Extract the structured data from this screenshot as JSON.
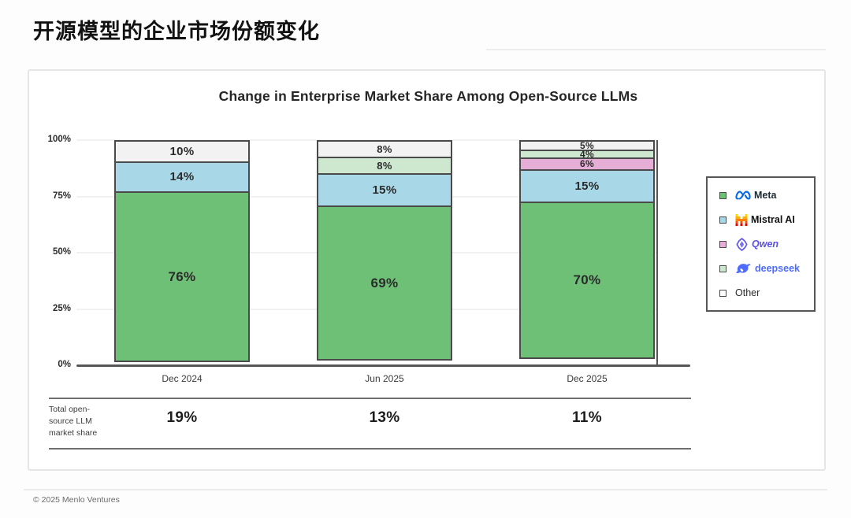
{
  "header": {
    "title": "开源模型的企业市场份额变化"
  },
  "footer": {
    "copyright": "© 2025 Menlo Ventures"
  },
  "chart_data": {
    "type": "bar",
    "stacked": true,
    "title": "Change in Enterprise Market Share Among Open-Source LLMs",
    "categories": [
      "Dec 2024",
      "Jun 2025",
      "Dec 2025"
    ],
    "series": [
      {
        "name": "Meta",
        "color": "#6ec076",
        "values": [
          76,
          69,
          70
        ]
      },
      {
        "name": "Mistral AI",
        "color": "#a8d8e8",
        "values": [
          14,
          15,
          15
        ]
      },
      {
        "name": "Qwen",
        "color": "#e6aed6",
        "values": [
          0,
          0,
          6
        ]
      },
      {
        "name": "deepseek",
        "color": "#cde8cf",
        "values": [
          0,
          8,
          4
        ]
      },
      {
        "name": "Other",
        "color": "#f2f2f2",
        "values": [
          10,
          8,
          5
        ]
      }
    ],
    "ylim": [
      0,
      100
    ],
    "yticks": [
      "0%",
      "25%",
      "50%",
      "75%",
      "100%"
    ],
    "grid": true,
    "legend_position": "right",
    "totals_row": {
      "label": "Total open-source LLM market share",
      "values": [
        "19%",
        "13%",
        "11%"
      ]
    }
  },
  "legend": {
    "items": [
      {
        "swatch": "#6ec076",
        "logo": "meta-logo",
        "name": "Meta",
        "text_color": "#1c2b33",
        "weight": 700,
        "italic": false
      },
      {
        "swatch": "#a8d8e8",
        "logo": "mistral-logo",
        "name": "Mistral AI",
        "text_color": "#111111",
        "weight": 800,
        "italic": false
      },
      {
        "swatch": "#e6aed6",
        "logo": "qwen-logo",
        "name": "Qwen",
        "text_color": "#5a50e6",
        "weight": 700,
        "italic": true
      },
      {
        "swatch": "#cde8cf",
        "logo": "deepseek-logo",
        "name": "deepseek",
        "text_color": "#4d6bfe",
        "weight": 600,
        "italic": false
      },
      {
        "swatch": "#ffffff",
        "logo": null,
        "name": "Other",
        "text_color": "#2b2b2b",
        "weight": 400,
        "italic": false
      }
    ]
  }
}
